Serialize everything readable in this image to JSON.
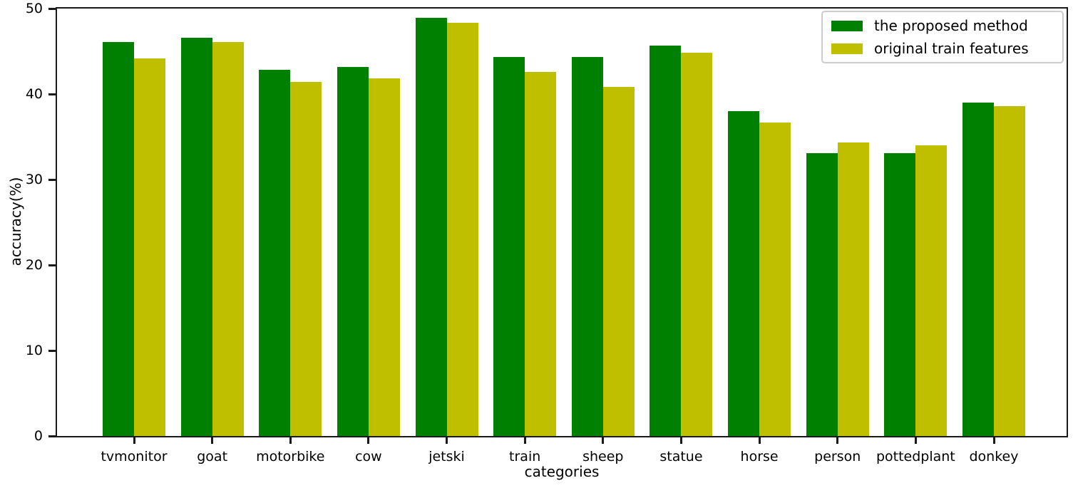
{
  "chart_data": {
    "type": "bar",
    "title": "",
    "xlabel": "categories",
    "ylabel": "accuracy(%)",
    "ylim": [
      0,
      50
    ],
    "yticks": [
      0,
      10,
      20,
      30,
      40,
      50
    ],
    "grid": false,
    "legend_position": "upper right",
    "categories": [
      "tvmonitor",
      "goat",
      "motorbike",
      "cow",
      "jetski",
      "train",
      "sheep",
      "statue",
      "horse",
      "person",
      "pottedplant",
      "donkey"
    ],
    "series": [
      {
        "name": "the proposed method",
        "color": "#008000",
        "values": [
          46.1,
          46.6,
          42.8,
          43.2,
          48.9,
          44.3,
          44.3,
          45.7,
          38.0,
          33.1,
          33.1,
          39.0
        ]
      },
      {
        "name": "original train features",
        "color": "#bfbf00",
        "values": [
          44.2,
          46.1,
          41.4,
          41.8,
          48.3,
          42.6,
          40.8,
          44.8,
          36.7,
          34.3,
          34.0,
          38.6
        ]
      }
    ],
    "axis_color": "#1a1a1a",
    "background_color": "#ffffff"
  }
}
